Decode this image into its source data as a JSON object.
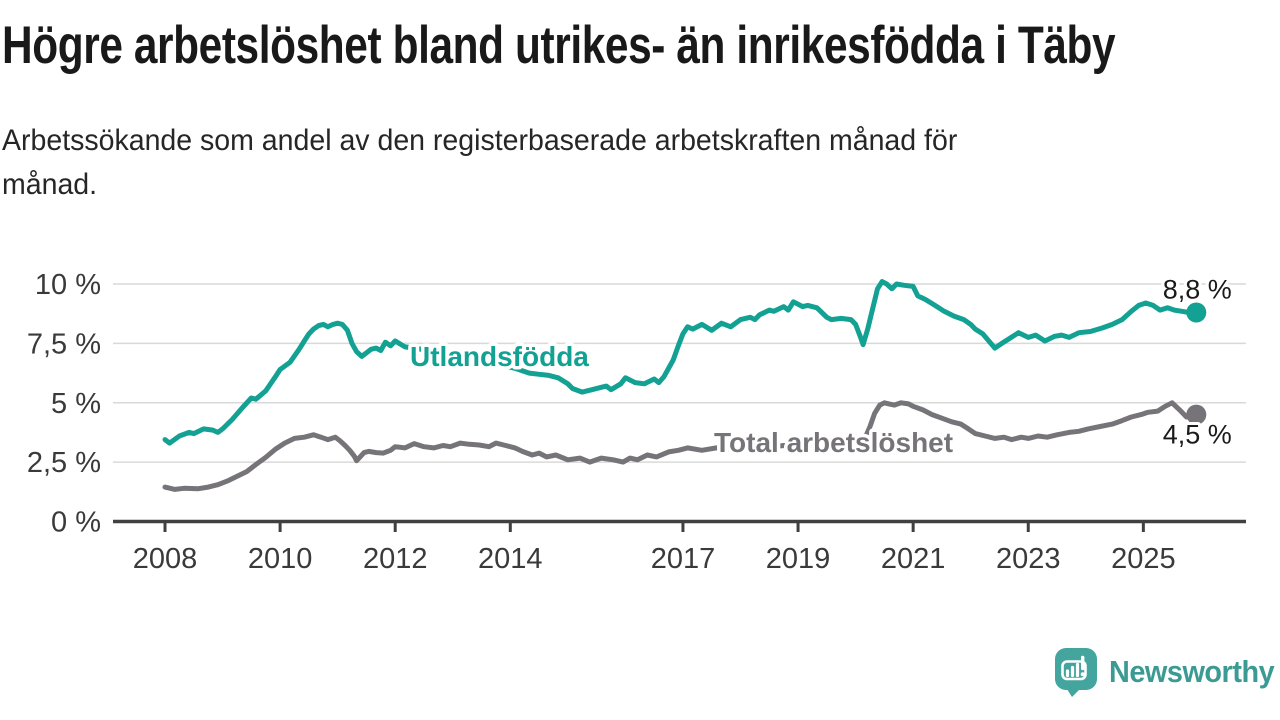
{
  "chart_data": {
    "type": "line",
    "title": "Högre arbetslöshet bland utrikes- än inrikesfödda i Täby",
    "subtitle_lines": [
      "Arbetssökande som andel av den registerbaserade arbetskraften månad för",
      "månad."
    ],
    "xlabel": "",
    "ylabel": "",
    "ylim": [
      0,
      10.4
    ],
    "xlim": [
      2007.1,
      2026.8
    ],
    "grid": true,
    "legend_position": "inline-labels",
    "y_ticks": [
      {
        "value": 0,
        "label": "0 %"
      },
      {
        "value": 2.5,
        "label": "2,5 %"
      },
      {
        "value": 5,
        "label": "5 %"
      },
      {
        "value": 7.5,
        "label": "7,5 %"
      },
      {
        "value": 10,
        "label": "10 %"
      }
    ],
    "x_ticks": [
      {
        "year": 2008,
        "label": "2008"
      },
      {
        "year": 2010,
        "label": "2010"
      },
      {
        "year": 2012,
        "label": "2012"
      },
      {
        "year": 2014,
        "label": "2014"
      },
      {
        "year": 2017,
        "label": "2017"
      },
      {
        "year": 2019,
        "label": "2019"
      },
      {
        "year": 2021,
        "label": "2021"
      },
      {
        "year": 2023,
        "label": "2023"
      },
      {
        "year": 2025,
        "label": "2025"
      }
    ],
    "series": [
      {
        "name": "Utlandsfödda",
        "color": "#12a192",
        "end_label": "8,8 %",
        "points": [
          [
            2008.0,
            3.45
          ],
          [
            2008.08,
            3.3
          ],
          [
            2008.25,
            3.6
          ],
          [
            2008.42,
            3.75
          ],
          [
            2008.5,
            3.7
          ],
          [
            2008.67,
            3.9
          ],
          [
            2008.83,
            3.85
          ],
          [
            2008.92,
            3.75
          ],
          [
            2009.0,
            3.9
          ],
          [
            2009.17,
            4.3
          ],
          [
            2009.33,
            4.75
          ],
          [
            2009.5,
            5.2
          ],
          [
            2009.58,
            5.15
          ],
          [
            2009.75,
            5.5
          ],
          [
            2009.92,
            6.1
          ],
          [
            2010.0,
            6.4
          ],
          [
            2010.17,
            6.7
          ],
          [
            2010.33,
            7.25
          ],
          [
            2010.42,
            7.6
          ],
          [
            2010.5,
            7.9
          ],
          [
            2010.58,
            8.1
          ],
          [
            2010.67,
            8.25
          ],
          [
            2010.75,
            8.3
          ],
          [
            2010.83,
            8.2
          ],
          [
            2010.92,
            8.3
          ],
          [
            2011.0,
            8.35
          ],
          [
            2011.08,
            8.3
          ],
          [
            2011.17,
            8.05
          ],
          [
            2011.25,
            7.5
          ],
          [
            2011.33,
            7.15
          ],
          [
            2011.42,
            6.95
          ],
          [
            2011.5,
            7.1
          ],
          [
            2011.58,
            7.25
          ],
          [
            2011.67,
            7.3
          ],
          [
            2011.75,
            7.2
          ],
          [
            2011.83,
            7.55
          ],
          [
            2011.92,
            7.4
          ],
          [
            2012.0,
            7.6
          ],
          [
            2012.17,
            7.35
          ],
          [
            2012.33,
            7.3
          ],
          [
            2012.58,
            7.2
          ],
          [
            2012.83,
            7.1
          ],
          [
            2013.08,
            7.0
          ],
          [
            2013.33,
            6.9
          ],
          [
            2013.58,
            6.75
          ],
          [
            2013.83,
            6.6
          ],
          [
            2014.08,
            6.45
          ],
          [
            2014.33,
            6.25
          ],
          [
            2014.5,
            6.2
          ],
          [
            2014.67,
            6.15
          ],
          [
            2014.83,
            6.05
          ],
          [
            2015.0,
            5.8
          ],
          [
            2015.08,
            5.6
          ],
          [
            2015.25,
            5.45
          ],
          [
            2015.42,
            5.55
          ],
          [
            2015.58,
            5.65
          ],
          [
            2015.67,
            5.7
          ],
          [
            2015.75,
            5.55
          ],
          [
            2015.92,
            5.8
          ],
          [
            2016.0,
            6.05
          ],
          [
            2016.17,
            5.85
          ],
          [
            2016.33,
            5.8
          ],
          [
            2016.5,
            6.0
          ],
          [
            2016.58,
            5.85
          ],
          [
            2016.67,
            6.1
          ],
          [
            2016.83,
            6.8
          ],
          [
            2016.92,
            7.4
          ],
          [
            2017.0,
            7.9
          ],
          [
            2017.08,
            8.2
          ],
          [
            2017.17,
            8.1
          ],
          [
            2017.33,
            8.3
          ],
          [
            2017.5,
            8.05
          ],
          [
            2017.67,
            8.35
          ],
          [
            2017.83,
            8.2
          ],
          [
            2018.0,
            8.5
          ],
          [
            2018.17,
            8.6
          ],
          [
            2018.25,
            8.5
          ],
          [
            2018.33,
            8.7
          ],
          [
            2018.5,
            8.9
          ],
          [
            2018.58,
            8.85
          ],
          [
            2018.75,
            9.05
          ],
          [
            2018.83,
            8.9
          ],
          [
            2018.92,
            9.25
          ],
          [
            2019.08,
            9.05
          ],
          [
            2019.17,
            9.1
          ],
          [
            2019.33,
            9.0
          ],
          [
            2019.5,
            8.6
          ],
          [
            2019.58,
            8.5
          ],
          [
            2019.75,
            8.55
          ],
          [
            2019.92,
            8.5
          ],
          [
            2020.0,
            8.3
          ],
          [
            2020.08,
            7.8
          ],
          [
            2020.13,
            7.45
          ],
          [
            2020.21,
            8.1
          ],
          [
            2020.29,
            8.9
          ],
          [
            2020.38,
            9.8
          ],
          [
            2020.46,
            10.1
          ],
          [
            2020.54,
            10.0
          ],
          [
            2020.63,
            9.8
          ],
          [
            2020.71,
            10.0
          ],
          [
            2020.83,
            9.95
          ],
          [
            2021.0,
            9.9
          ],
          [
            2021.08,
            9.5
          ],
          [
            2021.21,
            9.35
          ],
          [
            2021.38,
            9.1
          ],
          [
            2021.54,
            8.85
          ],
          [
            2021.71,
            8.65
          ],
          [
            2021.88,
            8.5
          ],
          [
            2022.0,
            8.3
          ],
          [
            2022.08,
            8.1
          ],
          [
            2022.21,
            7.9
          ],
          [
            2022.42,
            7.3
          ],
          [
            2022.54,
            7.5
          ],
          [
            2022.67,
            7.7
          ],
          [
            2022.83,
            7.95
          ],
          [
            2023.0,
            7.75
          ],
          [
            2023.13,
            7.85
          ],
          [
            2023.29,
            7.6
          ],
          [
            2023.46,
            7.8
          ],
          [
            2023.58,
            7.85
          ],
          [
            2023.71,
            7.75
          ],
          [
            2023.88,
            7.95
          ],
          [
            2024.08,
            8.0
          ],
          [
            2024.29,
            8.15
          ],
          [
            2024.46,
            8.3
          ],
          [
            2024.63,
            8.5
          ],
          [
            2024.79,
            8.85
          ],
          [
            2024.92,
            9.1
          ],
          [
            2025.04,
            9.2
          ],
          [
            2025.17,
            9.1
          ],
          [
            2025.29,
            8.9
          ],
          [
            2025.42,
            9.0
          ],
          [
            2025.54,
            8.9
          ],
          [
            2025.67,
            8.85
          ],
          [
            2025.79,
            8.8
          ],
          [
            2025.92,
            8.8
          ]
        ]
      },
      {
        "name": "Total arbetslöshet",
        "color": "#767479",
        "end_label": "4,5 %",
        "points": [
          [
            2008.0,
            1.45
          ],
          [
            2008.17,
            1.35
          ],
          [
            2008.33,
            1.4
          ],
          [
            2008.58,
            1.38
          ],
          [
            2008.75,
            1.45
          ],
          [
            2008.92,
            1.55
          ],
          [
            2009.08,
            1.7
          ],
          [
            2009.25,
            1.9
          ],
          [
            2009.42,
            2.1
          ],
          [
            2009.58,
            2.4
          ],
          [
            2009.75,
            2.7
          ],
          [
            2009.92,
            3.05
          ],
          [
            2010.08,
            3.3
          ],
          [
            2010.25,
            3.5
          ],
          [
            2010.42,
            3.55
          ],
          [
            2010.58,
            3.65
          ],
          [
            2010.71,
            3.55
          ],
          [
            2010.83,
            3.45
          ],
          [
            2010.96,
            3.55
          ],
          [
            2011.04,
            3.4
          ],
          [
            2011.13,
            3.2
          ],
          [
            2011.21,
            3.0
          ],
          [
            2011.29,
            2.75
          ],
          [
            2011.33,
            2.56
          ],
          [
            2011.46,
            2.9
          ],
          [
            2011.54,
            2.95
          ],
          [
            2011.67,
            2.9
          ],
          [
            2011.79,
            2.88
          ],
          [
            2011.92,
            3.0
          ],
          [
            2012.0,
            3.15
          ],
          [
            2012.17,
            3.1
          ],
          [
            2012.33,
            3.28
          ],
          [
            2012.5,
            3.15
          ],
          [
            2012.67,
            3.1
          ],
          [
            2012.83,
            3.2
          ],
          [
            2012.96,
            3.15
          ],
          [
            2013.13,
            3.3
          ],
          [
            2013.29,
            3.25
          ],
          [
            2013.46,
            3.22
          ],
          [
            2013.63,
            3.15
          ],
          [
            2013.75,
            3.3
          ],
          [
            2013.92,
            3.2
          ],
          [
            2014.08,
            3.1
          ],
          [
            2014.21,
            2.95
          ],
          [
            2014.38,
            2.8
          ],
          [
            2014.5,
            2.88
          ],
          [
            2014.63,
            2.72
          ],
          [
            2014.79,
            2.8
          ],
          [
            2015.0,
            2.6
          ],
          [
            2015.21,
            2.67
          ],
          [
            2015.38,
            2.5
          ],
          [
            2015.58,
            2.67
          ],
          [
            2015.79,
            2.6
          ],
          [
            2015.96,
            2.5
          ],
          [
            2016.08,
            2.67
          ],
          [
            2016.21,
            2.6
          ],
          [
            2016.38,
            2.8
          ],
          [
            2016.54,
            2.72
          ],
          [
            2016.75,
            2.93
          ],
          [
            2016.92,
            3.0
          ],
          [
            2017.08,
            3.1
          ],
          [
            2017.33,
            3.0
          ],
          [
            2017.58,
            3.1
          ],
          [
            2017.83,
            3.05
          ],
          [
            2018.08,
            3.15
          ],
          [
            2018.42,
            3.1
          ],
          [
            2018.75,
            3.2
          ],
          [
            2019.08,
            3.15
          ],
          [
            2019.42,
            3.25
          ],
          [
            2019.67,
            3.2
          ],
          [
            2019.92,
            3.3
          ],
          [
            2020.08,
            3.4
          ],
          [
            2020.17,
            3.55
          ],
          [
            2020.25,
            4.0
          ],
          [
            2020.33,
            4.55
          ],
          [
            2020.42,
            4.9
          ],
          [
            2020.5,
            5.0
          ],
          [
            2020.58,
            4.95
          ],
          [
            2020.67,
            4.9
          ],
          [
            2020.79,
            5.0
          ],
          [
            2020.92,
            4.95
          ],
          [
            2021.0,
            4.85
          ],
          [
            2021.17,
            4.7
          ],
          [
            2021.33,
            4.5
          ],
          [
            2021.5,
            4.35
          ],
          [
            2021.67,
            4.2
          ],
          [
            2021.83,
            4.1
          ],
          [
            2021.96,
            3.9
          ],
          [
            2022.08,
            3.7
          ],
          [
            2022.25,
            3.6
          ],
          [
            2022.42,
            3.5
          ],
          [
            2022.58,
            3.55
          ],
          [
            2022.71,
            3.45
          ],
          [
            2022.88,
            3.55
          ],
          [
            2023.0,
            3.5
          ],
          [
            2023.17,
            3.6
          ],
          [
            2023.33,
            3.55
          ],
          [
            2023.5,
            3.65
          ],
          [
            2023.71,
            3.75
          ],
          [
            2023.88,
            3.8
          ],
          [
            2024.04,
            3.9
          ],
          [
            2024.25,
            4.0
          ],
          [
            2024.46,
            4.1
          ],
          [
            2024.63,
            4.25
          ],
          [
            2024.79,
            4.4
          ],
          [
            2024.96,
            4.5
          ],
          [
            2025.08,
            4.6
          ],
          [
            2025.25,
            4.65
          ],
          [
            2025.38,
            4.85
          ],
          [
            2025.5,
            5.0
          ],
          [
            2025.63,
            4.7
          ],
          [
            2025.75,
            4.4
          ],
          [
            2025.92,
            4.5
          ]
        ]
      }
    ],
    "colors": {
      "grid": "#d9d9d9",
      "axis": "#404040",
      "tick_label": "#3a3a3a",
      "annotation": "#1a1a1a"
    }
  },
  "branding": {
    "logo_text": "Newsworthy",
    "logo_icon": "newsworthy-bubble-barchart-icon",
    "accent": "#3b9b94",
    "icon_fill": "#44a59e"
  }
}
